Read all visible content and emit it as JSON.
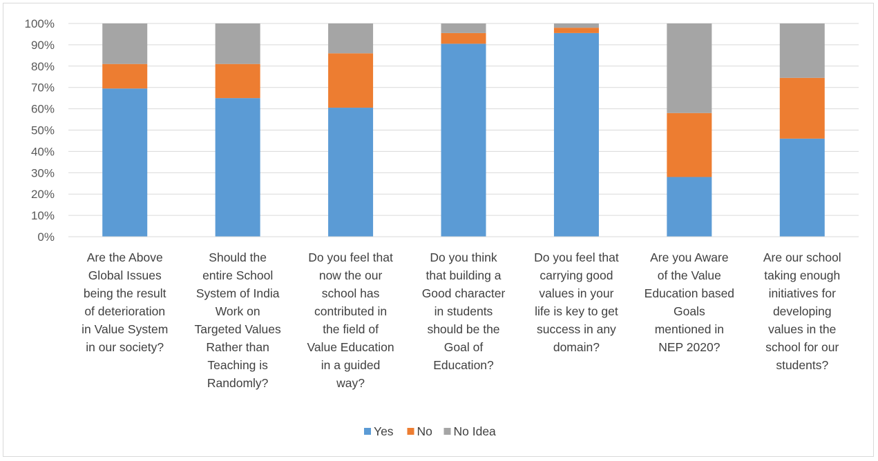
{
  "chart_data": {
    "type": "bar",
    "stacked": true,
    "percent": true,
    "categories": [
      [
        "Are the Above",
        "Global Issues",
        "being the result",
        "of deterioration",
        "in Value System",
        "in our society?"
      ],
      [
        "Should the",
        "entire School",
        "System of India",
        "Work on",
        "Targeted Values",
        "Rather than",
        "Teaching is",
        "Randomly?"
      ],
      [
        "Do you feel that",
        "now the our",
        "school has",
        "contributed in",
        "the field of",
        "Value Education",
        "in a guided",
        "way?"
      ],
      [
        "Do you think",
        "that building a",
        "Good character",
        "in students",
        "should be the",
        "Goal of",
        "Education?"
      ],
      [
        "Do you feel that",
        "carrying good",
        "values in your",
        "life is key to get",
        "success in any",
        "domain?"
      ],
      [
        "Are you Aware",
        "of the Value",
        "Education based",
        "Goals",
        "mentioned in",
        "NEP 2020?"
      ],
      [
        "Are our school",
        "taking enough",
        "initiatives for",
        "developing",
        "values in the",
        "school for our",
        "students?"
      ]
    ],
    "series": [
      {
        "name": "Yes",
        "color": "#5b9bd5",
        "values": [
          69.5,
          65,
          60.5,
          90.5,
          95.5,
          28,
          46
        ]
      },
      {
        "name": "No",
        "color": "#ed7d31",
        "values": [
          11.5,
          16,
          25.5,
          5,
          2.5,
          30,
          28.5
        ]
      },
      {
        "name": "No Idea",
        "color": "#a5a5a5",
        "values": [
          19,
          19,
          14,
          4.5,
          2,
          42,
          25.5
        ]
      }
    ],
    "ylim": [
      0,
      100
    ],
    "yticks": [
      "0%",
      "10%",
      "20%",
      "30%",
      "40%",
      "50%",
      "60%",
      "70%",
      "80%",
      "90%",
      "100%"
    ],
    "grid": true,
    "legend": "bottom-center"
  }
}
